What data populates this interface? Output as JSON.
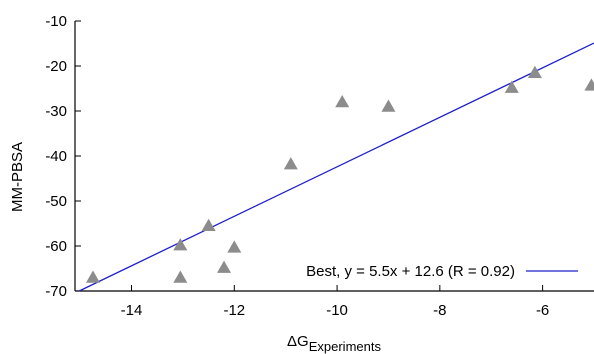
{
  "chart_data": {
    "type": "scatter",
    "title": "",
    "xlabel": "ΔG",
    "xlabel_subscript": "Experiments",
    "ylabel": "MM-PBSA",
    "xlim": [
      -15.1,
      -5.0
    ],
    "ylim": [
      -70,
      -10
    ],
    "x_ticks": [
      -14,
      -12,
      -10,
      -8,
      -6
    ],
    "y_ticks": [
      -10,
      -20,
      -30,
      -40,
      -50,
      -60,
      -70
    ],
    "grid": false,
    "legend_position": "bottom-right",
    "colors": {
      "points": "#8c8c8c",
      "fit_line": "#1f1fcc",
      "axes": "#000000"
    },
    "series": [
      {
        "kind": "points",
        "marker": "triangle",
        "x": [
          -14.75,
          -13.05,
          -13.05,
          -12.5,
          -12.2,
          -12.0,
          -10.9,
          -9.9,
          -9.0,
          -6.6,
          -6.15,
          -5.05
        ],
        "y": [
          -67.0,
          -67.0,
          -59.8,
          -55.5,
          -64.8,
          -60.3,
          -41.8,
          -28.0,
          -29.0,
          -24.8,
          -21.5,
          -24.3
        ]
      },
      {
        "kind": "line",
        "name": "Best, y = 5.5x + 12.6 (R = 0.92)",
        "slope": 5.5,
        "intercept": 12.6
      }
    ]
  }
}
